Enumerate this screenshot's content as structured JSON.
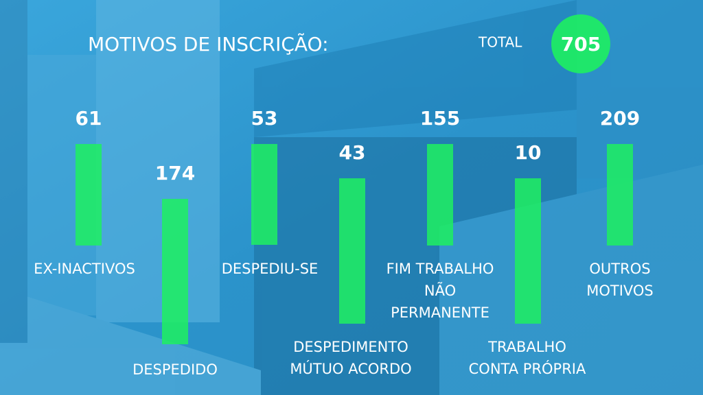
{
  "title": "MOTIVOS DE INSCRIÇÃO:",
  "total": {
    "label": "TOTAL",
    "value": "705"
  },
  "items": [
    {
      "value": "61",
      "label": [
        "EX-INACTIVOS"
      ]
    },
    {
      "value": "174",
      "label": [
        "DESPEDIDO"
      ]
    },
    {
      "value": "53",
      "label": [
        "DESPEDIU-SE"
      ]
    },
    {
      "value": "43",
      "label": [
        "DESPEDIMENTO",
        "MÚTUO ACORDO"
      ]
    },
    {
      "value": "155",
      "label": [
        "FIM TRABALHO",
        "NÃO",
        "PERMANENTE"
      ]
    },
    {
      "value": "10",
      "label": [
        "TRABALHO",
        "CONTA PRÓPRIA"
      ]
    },
    {
      "value": "209",
      "label": [
        "OUTROS",
        "MOTIVOS"
      ]
    }
  ]
}
